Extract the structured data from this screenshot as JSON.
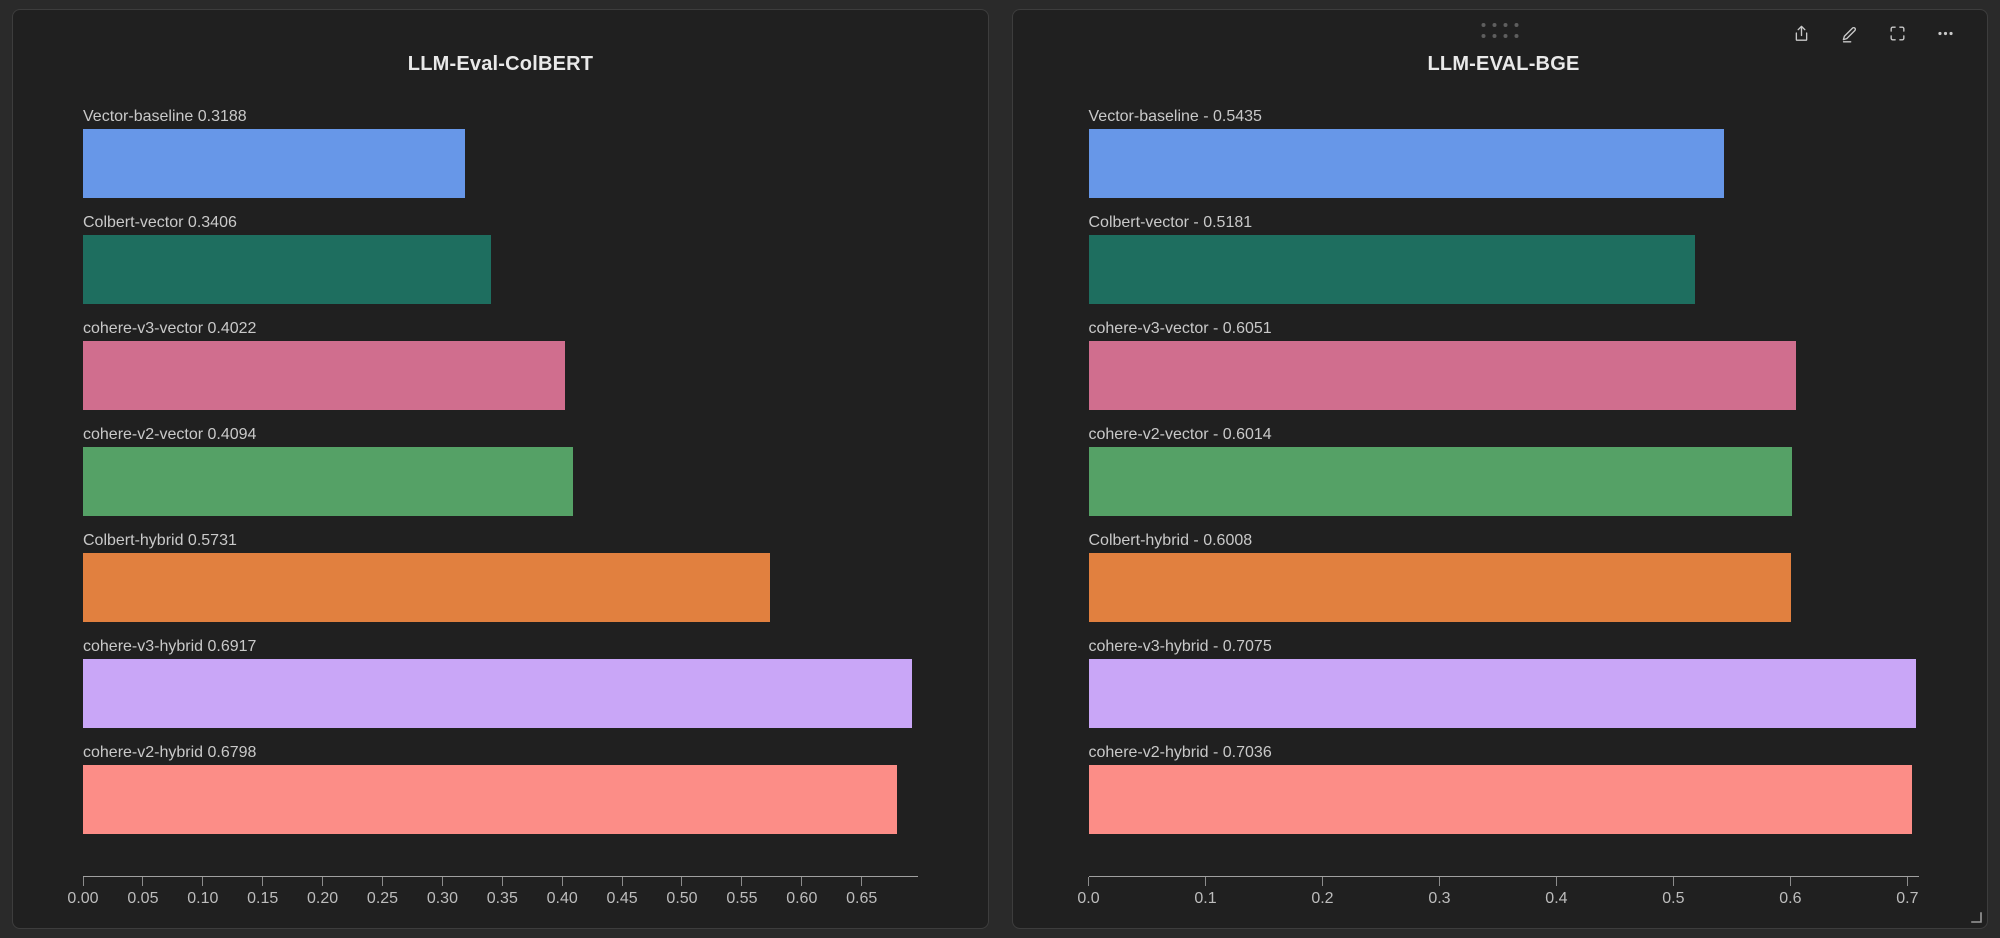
{
  "page": {
    "background": "#2a2a2a",
    "panel_background": "#202020",
    "panel_border": "#3d3d3d"
  },
  "panels": [
    {
      "chart_index": 0,
      "selected": false
    },
    {
      "chart_index": 1,
      "selected": true,
      "drag_handle": "drag-handle-dots",
      "toolbar_icons": [
        "share-icon",
        "edit-icon",
        "fullscreen-icon",
        "more-options-icon"
      ],
      "resize_handle": "resize-corner-icon"
    }
  ],
  "chart_data": [
    {
      "type": "bar",
      "orientation": "horizontal",
      "title": "LLM-Eval-ColBERT",
      "categories": [
        "Vector-baseline",
        "Colbert-vector",
        "cohere-v3-vector",
        "cohere-v2-vector",
        "Colbert-hybrid",
        "cohere-v3-hybrid",
        "cohere-v2-hybrid"
      ],
      "values": [
        0.3188,
        0.3406,
        0.4022,
        0.4094,
        0.5731,
        0.6917,
        0.6798
      ],
      "bar_labels": [
        "Vector-baseline 0.3188",
        "Colbert-vector 0.3406",
        "cohere-v3-vector 0.4022",
        "cohere-v2-vector 0.4094",
        "Colbert-hybrid 0.5731",
        "cohere-v3-hybrid 0.6917",
        "cohere-v2-hybrid 0.6798"
      ],
      "label_separator": " ",
      "colors": [
        "#6797e8",
        "#1e6e5f",
        "#d06e8e",
        "#55a166",
        "#e1803f",
        "#c9a6f7",
        "#fc8d87"
      ],
      "xlabel": "",
      "ylabel": "",
      "xlim": [
        0,
        0.697
      ],
      "x_ticks": [
        0,
        0.05,
        0.1,
        0.15,
        0.2,
        0.25,
        0.3,
        0.35,
        0.4,
        0.45,
        0.5,
        0.55,
        0.6,
        0.65
      ],
      "x_tick_labels": [
        "0.00",
        "0.05",
        "0.10",
        "0.15",
        "0.20",
        "0.25",
        "0.30",
        "0.35",
        "0.40",
        "0.45",
        "0.50",
        "0.55",
        "0.60",
        "0.65"
      ],
      "grid": false,
      "legend": false
    },
    {
      "type": "bar",
      "orientation": "horizontal",
      "title": "LLM-EVAL-BGE",
      "categories": [
        "Vector-baseline",
        "Colbert-vector",
        "cohere-v3-vector",
        "cohere-v2-vector",
        "Colbert-hybrid",
        "cohere-v3-hybrid",
        "cohere-v2-hybrid"
      ],
      "values": [
        0.5435,
        0.5181,
        0.6051,
        0.6014,
        0.6008,
        0.7075,
        0.7036
      ],
      "bar_labels": [
        "Vector-baseline - 0.5435",
        "Colbert-vector - 0.5181",
        "cohere-v3-vector - 0.6051",
        "cohere-v2-vector - 0.6014",
        "Colbert-hybrid - 0.6008",
        "cohere-v3-hybrid - 0.7075",
        "cohere-v2-hybrid - 0.7036"
      ],
      "label_separator": " - ",
      "colors": [
        "#6797e8",
        "#1e6e5f",
        "#d06e8e",
        "#55a166",
        "#e1803f",
        "#c9a6f7",
        "#fc8d87"
      ],
      "xlabel": "",
      "ylabel": "",
      "xlim": [
        0,
        0.7095
      ],
      "x_ticks": [
        0,
        0.1,
        0.2,
        0.3,
        0.4,
        0.5,
        0.6,
        0.7
      ],
      "x_tick_labels": [
        "0.0",
        "0.1",
        "0.2",
        "0.3",
        "0.4",
        "0.5",
        "0.6",
        "0.7"
      ],
      "grid": false,
      "legend": false
    }
  ]
}
